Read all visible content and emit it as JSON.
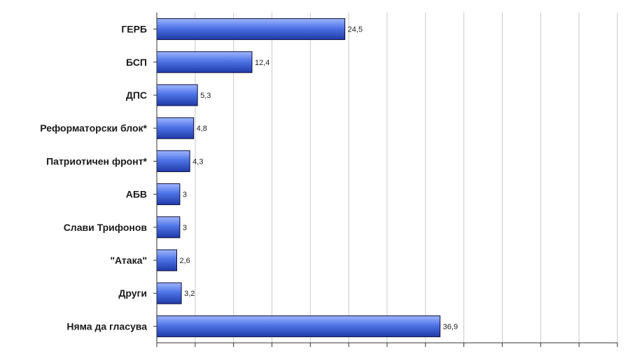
{
  "chart_data": {
    "type": "bar",
    "orientation": "horizontal",
    "categories": [
      "ГЕРБ",
      "БСП",
      "ДПС",
      "Реформаторски блок*",
      "Патриотичен фронт*",
      "АБВ",
      "Слави Трифонов",
      "\"Атака\"",
      "Други",
      "Няма да гласува"
    ],
    "values": [
      24.5,
      12.4,
      5.3,
      4.8,
      4.3,
      3,
      3,
      2.6,
      3.2,
      36.9
    ],
    "value_labels": [
      "24,5",
      "12,4",
      "5,3",
      "4,8",
      "4,3",
      "3",
      "3",
      "2,6",
      "3,2",
      "36,9"
    ],
    "xlim": [
      0,
      60
    ],
    "x_grid_step": 5,
    "grid": true,
    "legend": "none",
    "title": "",
    "xlabel": "",
    "ylabel": "",
    "bar_color": "#4a6fe0",
    "bar_edge_color": "#0a0a3a",
    "grid_color": "#c8c8c8"
  }
}
